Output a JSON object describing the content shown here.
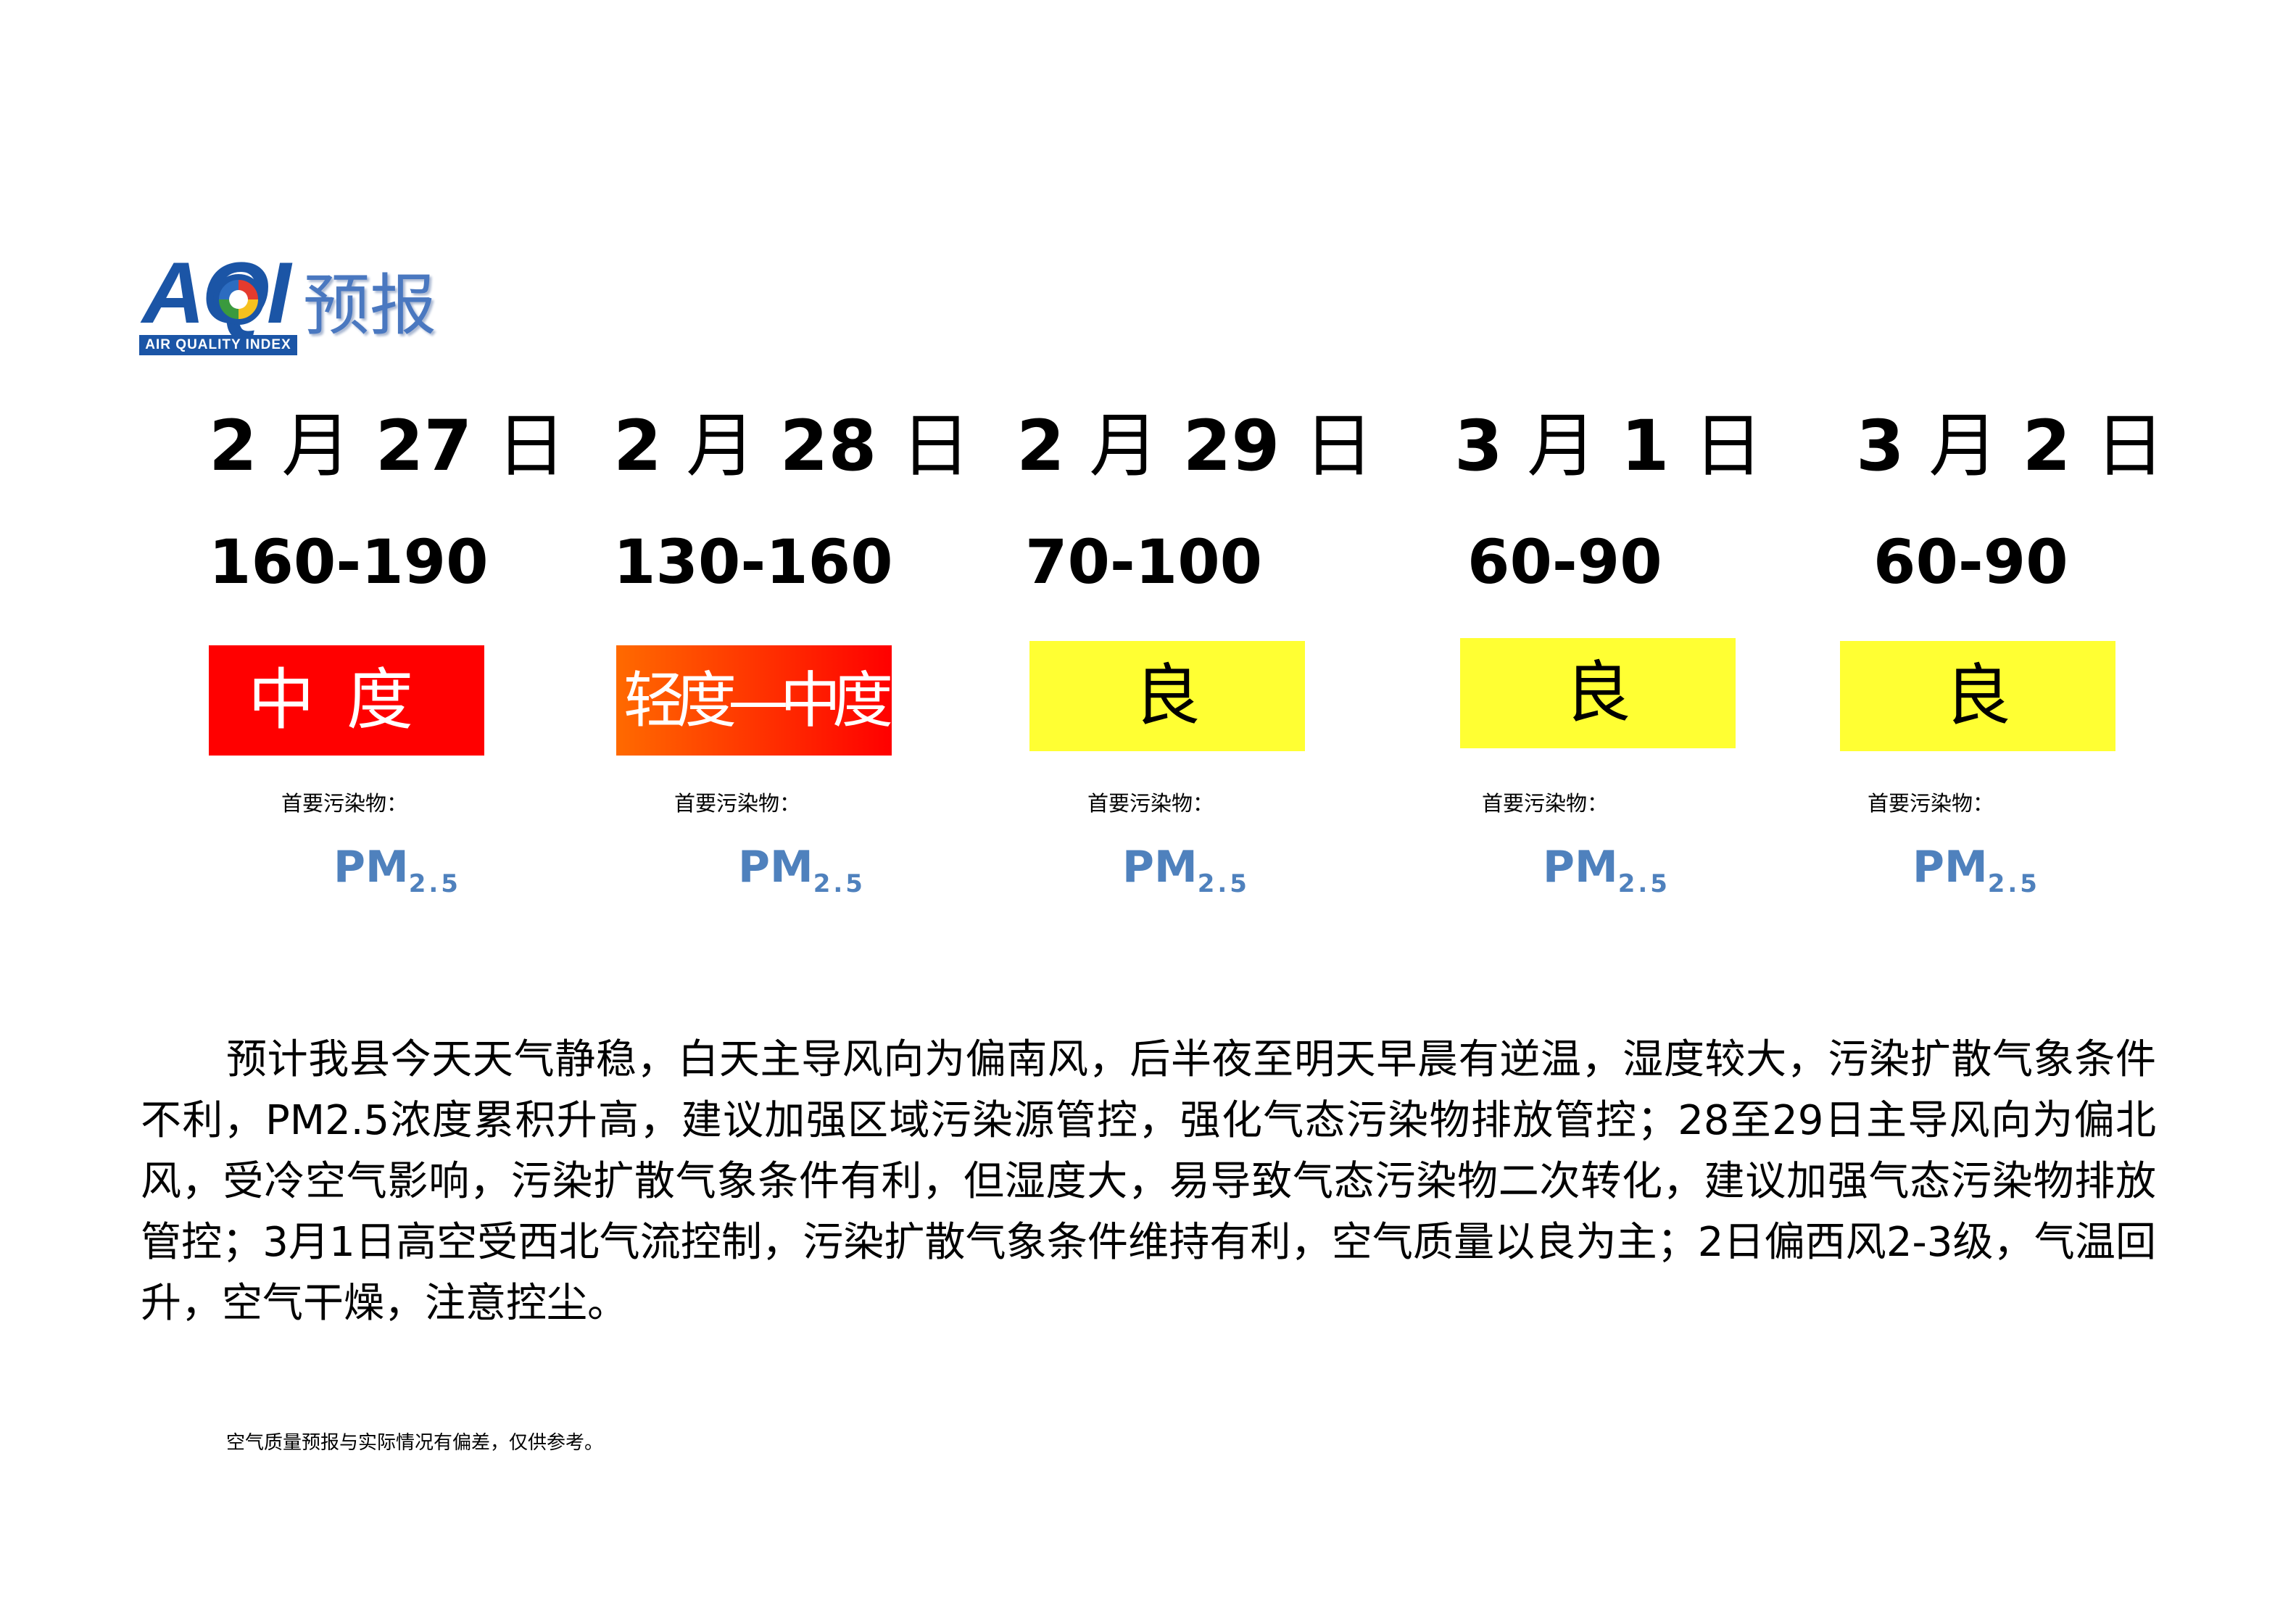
{
  "logo": {
    "mark_text": "AQI",
    "strip_text": "AIR QUALITY INDEX",
    "title": "预报",
    "colors": [
      "#1b55a6",
      "#e53b2e",
      "#f6c11e",
      "#3a9a3e"
    ]
  },
  "forecast": [
    {
      "month": "2",
      "day": "27",
      "month_char": "月",
      "day_char": "日",
      "aqi_range": "160-190",
      "level": "中度",
      "level_color": "#ff0000",
      "pollutant_label": "首要污染物：",
      "pollutant_main": "PM",
      "pollutant_sub": "2.5"
    },
    {
      "month": "2",
      "day": "28",
      "month_char": "月",
      "day_char": "日",
      "aqi_range": "130-160",
      "level": "轻度—中度",
      "level_color": "#ff4000",
      "pollutant_label": "首要污染物：",
      "pollutant_main": "PM",
      "pollutant_sub": "2.5"
    },
    {
      "month": "2",
      "day": "29",
      "month_char": "月",
      "day_char": "日",
      "aqi_range": "70-100",
      "level": "良",
      "level_color": "#ffff33",
      "pollutant_label": "首要污染物：",
      "pollutant_main": "PM",
      "pollutant_sub": "2.5"
    },
    {
      "month": "3",
      "day": "1",
      "month_char": "月",
      "day_char": "日",
      "aqi_range": "60-90",
      "level": "良",
      "level_color": "#ffff33",
      "pollutant_label": "首要污染物：",
      "pollutant_main": "PM",
      "pollutant_sub": "2.5"
    },
    {
      "month": "3",
      "day": "2",
      "month_char": "月",
      "day_char": "日",
      "aqi_range": "60-90",
      "level": "良",
      "level_color": "#ffff33",
      "pollutant_label": "首要污染物：",
      "pollutant_main": "PM",
      "pollutant_sub": "2.5"
    }
  ],
  "summary": "预计我县今天天气静稳，白天主导风向为偏南风，后半夜至明天早晨有逆温，湿度较大，污染扩散气象条件不利，PM2.5浓度累积升高，建议加强区域污染源管控，强化气态污染物排放管控；28至29日主导风向为偏北风，受冷空气影响，污染扩散气象条件有利，但湿度大，易导致气态污染物二次转化，建议加强气态污染物排放管控；3月1日高空受西北气流控制，污染扩散气象条件维持有利，空气质量以良为主；2日偏西风2-3级，气温回升，空气干燥，注意控尘。",
  "disclaimer": "空气质量预报与实际情况有偏差，仅供参考。"
}
